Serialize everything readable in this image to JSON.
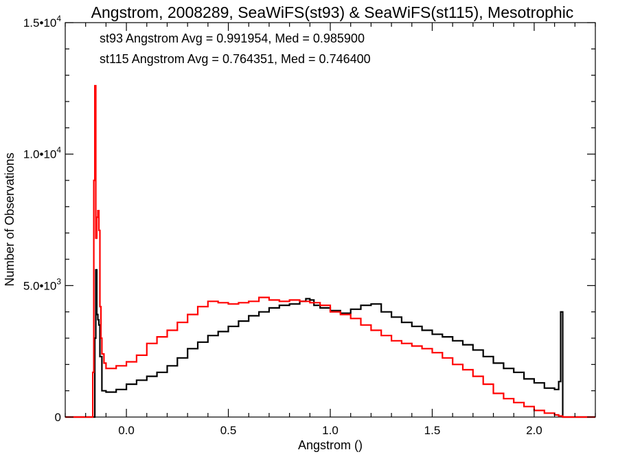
{
  "chart_data": {
    "type": "line",
    "title": "Angstrom, 2008289, SeaWiFS(st93) & SeaWiFS(st115), Mesotrophic",
    "xlabel": "Angstrom ()",
    "ylabel": "Number of Observations",
    "xlim": [
      -0.3,
      2.3
    ],
    "ylim": [
      0,
      15000
    ],
    "x_ticks": [
      {
        "value": 0.0,
        "label": "0.0"
      },
      {
        "value": 0.5,
        "label": "0.5"
      },
      {
        "value": 1.0,
        "label": "1.0"
      },
      {
        "value": 1.5,
        "label": "1.5"
      },
      {
        "value": 2.0,
        "label": "2.0"
      }
    ],
    "y_ticks": [
      {
        "value": 0,
        "mant": "0",
        "exp": ""
      },
      {
        "value": 5000,
        "mant": "5.0•10",
        "exp": "3"
      },
      {
        "value": 10000,
        "mant": "1.0•10",
        "exp": "4"
      },
      {
        "value": 15000,
        "mant": "1.5•10",
        "exp": "4"
      }
    ],
    "annotations": [
      {
        "text": "st93 Angstrom Avg = 0.991954, Med = 0.985900",
        "color": "#000000"
      },
      {
        "text": "st115 Angstrom Avg = 0.764351, Med = 0.746400",
        "color": "#ff0000"
      }
    ],
    "series": [
      {
        "key": "st93",
        "color": "#000000",
        "x": [
          -0.3,
          -0.17,
          -0.16,
          -0.155,
          -0.15,
          -0.145,
          -0.14,
          -0.135,
          -0.13,
          -0.12,
          -0.1,
          -0.05,
          0.0,
          0.05,
          0.1,
          0.15,
          0.2,
          0.25,
          0.3,
          0.35,
          0.4,
          0.45,
          0.5,
          0.55,
          0.6,
          0.65,
          0.7,
          0.75,
          0.8,
          0.85,
          0.88,
          0.9,
          0.92,
          0.95,
          1.0,
          1.05,
          1.1,
          1.15,
          1.2,
          1.25,
          1.3,
          1.35,
          1.4,
          1.45,
          1.5,
          1.55,
          1.6,
          1.65,
          1.7,
          1.75,
          1.8,
          1.85,
          1.9,
          1.95,
          2.0,
          2.05,
          2.1,
          2.12,
          2.13,
          2.14,
          2.15,
          2.3
        ],
        "y": [
          0,
          0,
          0,
          3000,
          5600,
          3900,
          3700,
          3500,
          2300,
          1000,
          950,
          1050,
          1250,
          1400,
          1550,
          1700,
          1950,
          2250,
          2600,
          2850,
          3100,
          3250,
          3450,
          3650,
          3850,
          4000,
          4150,
          4250,
          4300,
          4400,
          4500,
          4450,
          4250,
          4150,
          4050,
          3950,
          4100,
          4250,
          4300,
          4000,
          3800,
          3600,
          3450,
          3300,
          3150,
          3050,
          2900,
          2750,
          2550,
          2300,
          2050,
          1850,
          1700,
          1450,
          1300,
          1100,
          1050,
          1350,
          4000,
          0,
          0,
          0
        ]
      },
      {
        "key": "st115",
        "color": "#ff0000",
        "x": [
          -0.3,
          -0.17,
          -0.165,
          -0.16,
          -0.155,
          -0.15,
          -0.145,
          -0.14,
          -0.135,
          -0.13,
          -0.125,
          -0.12,
          -0.11,
          -0.1,
          -0.05,
          0.0,
          0.05,
          0.1,
          0.15,
          0.2,
          0.25,
          0.3,
          0.35,
          0.4,
          0.45,
          0.5,
          0.55,
          0.6,
          0.65,
          0.7,
          0.75,
          0.8,
          0.85,
          0.9,
          0.95,
          1.0,
          1.05,
          1.1,
          1.15,
          1.2,
          1.25,
          1.3,
          1.35,
          1.4,
          1.45,
          1.5,
          1.55,
          1.6,
          1.65,
          1.7,
          1.75,
          1.8,
          1.85,
          1.9,
          1.95,
          2.0,
          2.05,
          2.1,
          2.12,
          2.14,
          2.16,
          2.3
        ],
        "y": [
          0,
          0,
          1700,
          9000,
          12600,
          6800,
          7600,
          7850,
          7100,
          4200,
          3000,
          2400,
          2050,
          1850,
          1950,
          2100,
          2350,
          2800,
          3050,
          3300,
          3600,
          3900,
          4200,
          4400,
          4350,
          4300,
          4350,
          4400,
          4550,
          4450,
          4400,
          4450,
          4400,
          4350,
          4250,
          4000,
          3900,
          3750,
          3500,
          3300,
          3100,
          2900,
          2800,
          2700,
          2600,
          2450,
          2250,
          2000,
          1800,
          1550,
          1250,
          900,
          700,
          550,
          400,
          250,
          150,
          80,
          40,
          0,
          0,
          0
        ]
      }
    ]
  }
}
